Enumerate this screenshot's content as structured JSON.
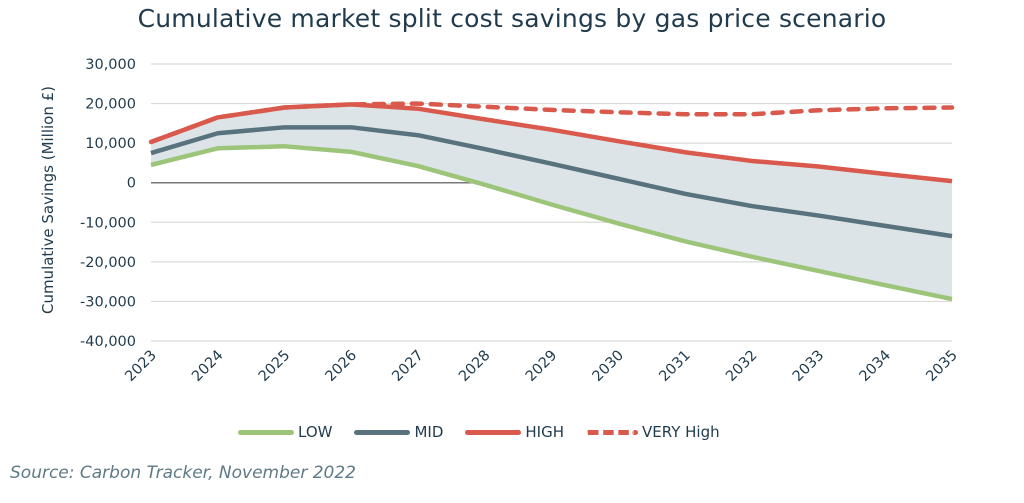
{
  "chart_data": {
    "type": "line",
    "title": "Cumulative market split cost savings by gas price scenario",
    "xlabel": "",
    "ylabel": "Cumulative Savings (Million £)",
    "x": [
      "2023",
      "2024",
      "2025",
      "2026",
      "2027",
      "2028",
      "2029",
      "2030",
      "2031",
      "2032",
      "2033",
      "2034",
      "2035"
    ],
    "ylim": [
      -40000,
      30000
    ],
    "yticks": [
      30000,
      20000,
      10000,
      0,
      -10000,
      -20000,
      -30000,
      -40000
    ],
    "ytick_labels": [
      "30,000",
      "20,000",
      "10,000",
      "0",
      "-10,000",
      "-20,000",
      "-30,000",
      "-40,000"
    ],
    "grid": true,
    "legend_position": "bottom",
    "shaded_band": {
      "between": [
        "LOW",
        "HIGH"
      ],
      "color": "#dde4e8"
    },
    "series": [
      {
        "name": "LOW",
        "color": "#9cc57a",
        "style": "solid",
        "values": [
          4500,
          8700,
          9200,
          7800,
          4200,
          -500,
          -5500,
          -10300,
          -14800,
          -18700,
          -22300,
          -25900,
          -29400
        ]
      },
      {
        "name": "MID",
        "color": "#58737e",
        "style": "solid",
        "values": [
          7500,
          12500,
          14000,
          14000,
          12000,
          8500,
          4800,
          1000,
          -2800,
          -5900,
          -8300,
          -10900,
          -13500
        ]
      },
      {
        "name": "HIGH",
        "color": "#d9594c",
        "style": "solid",
        "values": [
          10300,
          16500,
          19000,
          19800,
          18700,
          16000,
          13400,
          10500,
          7700,
          5500,
          4100,
          2200,
          400
        ]
      },
      {
        "name": "VERY High",
        "color": "#d9594c",
        "style": "dashed",
        "values": [
          10300,
          16500,
          19000,
          19800,
          20000,
          19200,
          18400,
          17800,
          17300,
          17300,
          18300,
          18800,
          19000
        ]
      }
    ]
  },
  "source": "Source: Carbon Tracker, November 2022"
}
